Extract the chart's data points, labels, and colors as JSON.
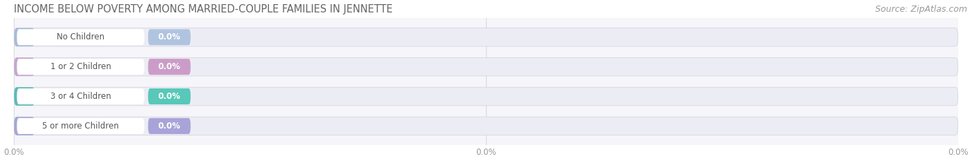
{
  "title": "INCOME BELOW POVERTY AMONG MARRIED-COUPLE FAMILIES IN JENNETTE",
  "source": "Source: ZipAtlas.com",
  "categories": [
    "No Children",
    "1 or 2 Children",
    "3 or 4 Children",
    "5 or more Children"
  ],
  "values": [
    0.0,
    0.0,
    0.0,
    0.0
  ],
  "bar_colors": [
    "#a8bcd8",
    "#c4a8cc",
    "#5bbcb4",
    "#a4a8d4"
  ],
  "value_pill_colors": [
    "#b0c4e0",
    "#cc9cc8",
    "#58c8b8",
    "#a8a4d8"
  ],
  "bar_bg_color": "#ecedf4",
  "bar_full_bg": "#ecedf4",
  "label_pill_bg": "#ffffff",
  "figure_bg": "#ffffff",
  "axes_bg": "#f5f5fa",
  "title_color": "#646464",
  "source_color": "#999999",
  "label_color": "#555555",
  "value_color": "#ffffff",
  "xtick_color": "#999999",
  "grid_color": "#d8d8e4",
  "bar_height": 0.62,
  "title_fontsize": 10.5,
  "source_fontsize": 9,
  "label_fontsize": 8.5,
  "value_fontsize": 8.5,
  "xtick_fontsize": 8.5
}
